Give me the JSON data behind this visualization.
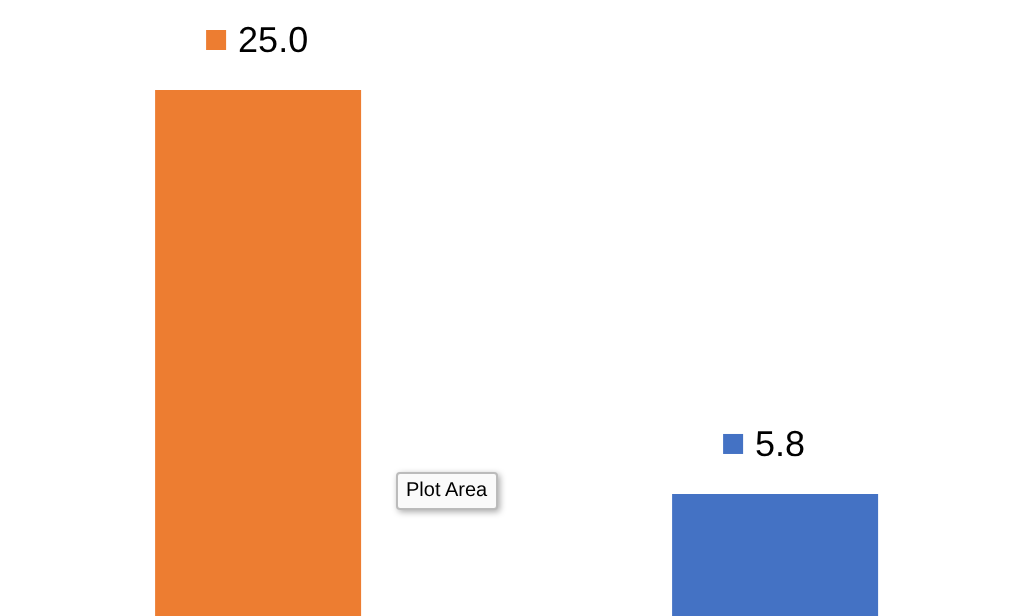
{
  "chart_data": {
    "type": "bar",
    "categories": [
      null,
      null
    ],
    "values": [
      25.0,
      5.8
    ],
    "value_labels": [
      "25.0",
      "5.8"
    ],
    "colors": [
      "#ed7d31",
      "#4472c4"
    ],
    "annotations": [
      "Plot Area"
    ]
  }
}
